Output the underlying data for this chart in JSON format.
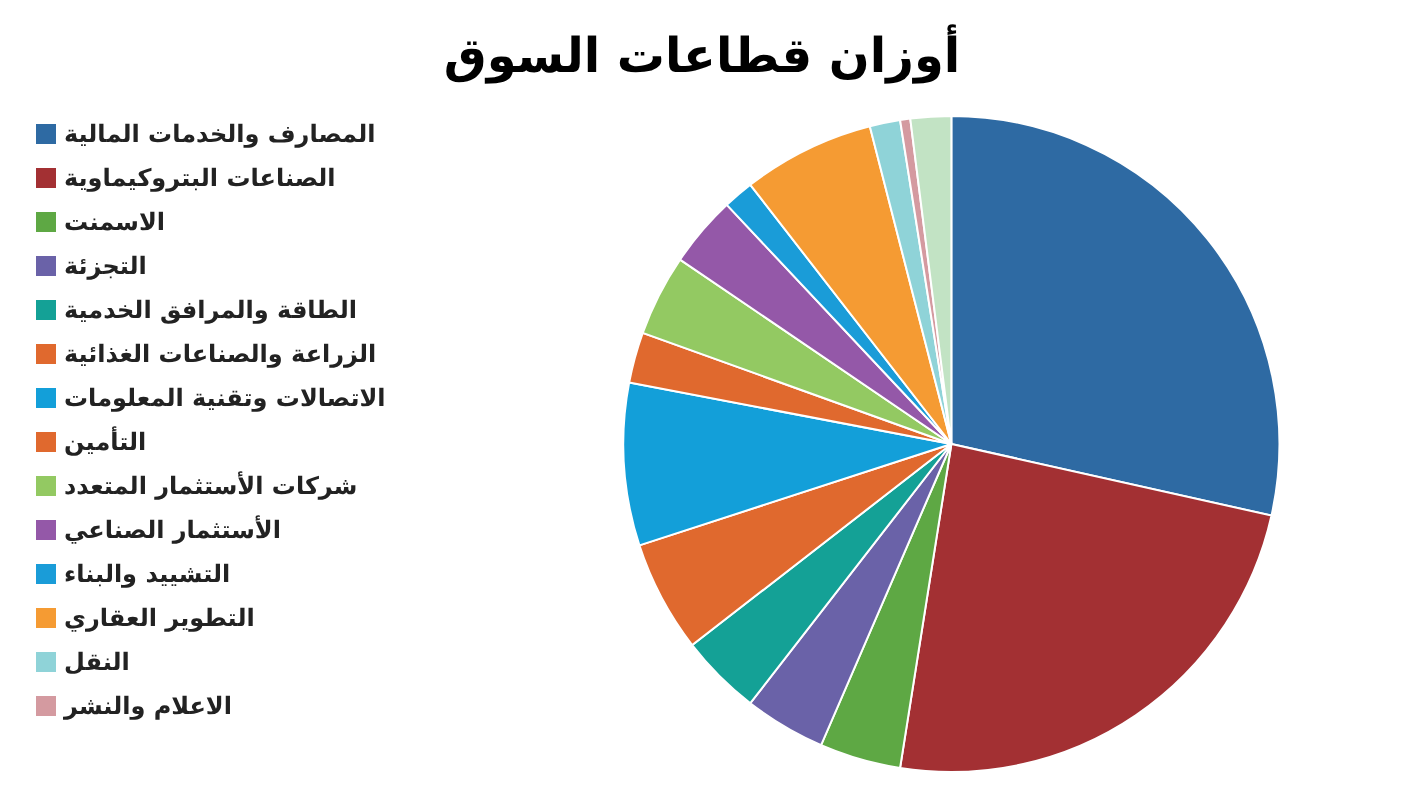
{
  "chart_data": {
    "type": "pie",
    "title": "أوزان قطاعات السوق",
    "categories": [
      "المصارف والخدمات المالية",
      "الصناعات البتروكيماوية",
      "الاسمنت",
      "التجزئة",
      "الطاقة والمرافق الخدمية",
      "الزراعة والصناعات الغذائية",
      "الاتصالات وتقنية المعلومات",
      "التأمين",
      "شركات الأستثمار المتعدد",
      "الأستثمار الصناعي",
      "التشييد والبناء",
      "التطوير العقاري",
      "النقل",
      "الاعلام والنشر",
      null
    ],
    "values": [
      28.5,
      24,
      4,
      4,
      4,
      5.5,
      8,
      2.5,
      4,
      3.5,
      1.5,
      6.5,
      1.5,
      0.5,
      2
    ],
    "colors": [
      "#2e6aa3",
      "#a33033",
      "#5ea844",
      "#6a62a8",
      "#14a196",
      "#e0692e",
      "#139fd9",
      "#e0692e",
      "#93c962",
      "#9458a8",
      "#1a9cd8",
      "#f59b33",
      "#8fd3d8",
      "#d49aa0",
      "#c2e3c4"
    ],
    "legend": "left"
  }
}
